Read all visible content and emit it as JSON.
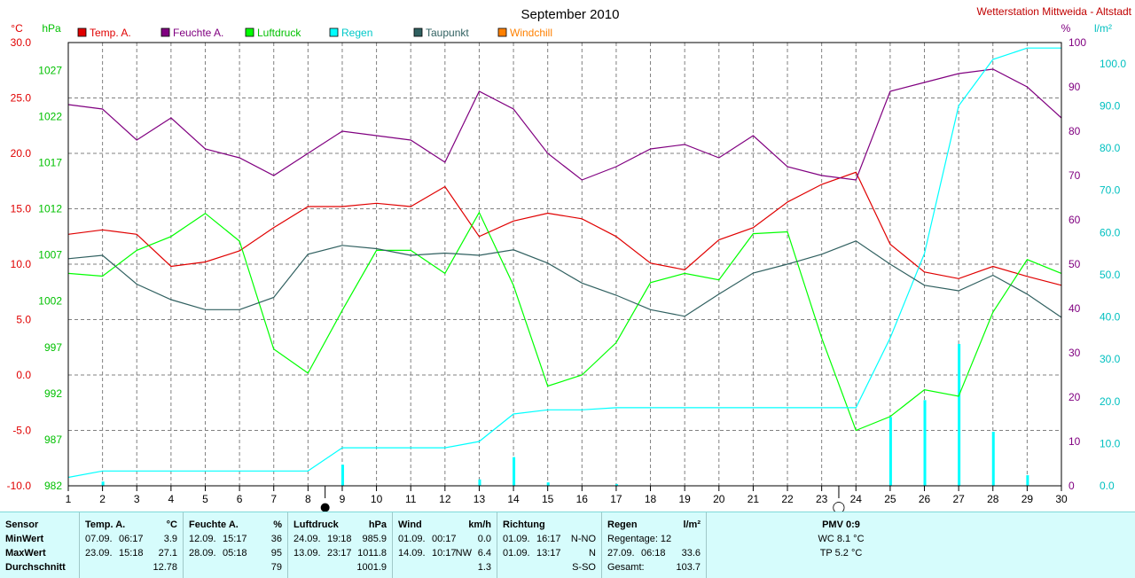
{
  "chart_data": {
    "type": "line",
    "title": "September 2010",
    "station": "Wetterstation Mittweida - Altstadt",
    "x": [
      1,
      2,
      3,
      4,
      5,
      6,
      7,
      8,
      9,
      10,
      11,
      12,
      13,
      14,
      15,
      16,
      17,
      18,
      19,
      20,
      21,
      22,
      23,
      24,
      25,
      26,
      27,
      28,
      29,
      30
    ],
    "x_ticks": [
      "1",
      "2",
      "3",
      "4",
      "5",
      "6",
      "7",
      "8",
      "9",
      "10",
      "11",
      "12",
      "13",
      "14",
      "15",
      "16",
      "17",
      "18",
      "19",
      "20",
      "21",
      "22",
      "23",
      "24",
      "25",
      "26",
      "27",
      "28",
      "29",
      "30"
    ],
    "left_axis_temp": {
      "unit": "°C",
      "range": [
        -10,
        30
      ],
      "ticks": [
        "30.0",
        "25.0",
        "20.0",
        "15.0",
        "10.0",
        "5.0",
        "0.0",
        "-5.0",
        "-10.0"
      ],
      "color": "#e00000"
    },
    "left_axis_pressure": {
      "unit": "hPa",
      "range": [
        982,
        1030
      ],
      "ticks": [
        "1027",
        "1022",
        "1017",
        "1012",
        "1007",
        "1002",
        "997",
        "992",
        "987",
        "982"
      ],
      "color": "#00c000"
    },
    "right_axis_humidity": {
      "unit": "%",
      "range": [
        0,
        100
      ],
      "ticks": [
        "100",
        "90",
        "80",
        "70",
        "60",
        "50",
        "40",
        "30",
        "20",
        "10",
        "0"
      ],
      "color": "#800080"
    },
    "right_axis_rain": {
      "unit": "l/m²",
      "range": [
        0,
        105
      ],
      "ticks": [
        "100.0",
        "90.0",
        "80.0",
        "70.0",
        "60.0",
        "50.0",
        "40.0",
        "30.0",
        "20.0",
        "10.0",
        "0.0"
      ],
      "color": "#00c0c0"
    },
    "legend": [
      {
        "name": "Temp. A.",
        "color": "#e00000"
      },
      {
        "name": "Feuchte A.",
        "color": "#800080"
      },
      {
        "name": "Luftdruck",
        "color": "#00ff00"
      },
      {
        "name": "Regen",
        "color": "#00ffff"
      },
      {
        "name": "Taupunkt",
        "color": "#306060"
      },
      {
        "name": "Windchill",
        "color": "#ff8000"
      }
    ],
    "series": [
      {
        "name": "Temp. A.",
        "axis": "temp",
        "color": "#e00000",
        "values": [
          12.7,
          13.1,
          12.7,
          9.8,
          10.2,
          11.2,
          13.3,
          15.2,
          15.2,
          15.5,
          15.2,
          17.0,
          12.5,
          13.9,
          14.6,
          14.1,
          12.5,
          10.1,
          9.5,
          12.2,
          13.3,
          15.6,
          17.2,
          18.3,
          11.8,
          9.3,
          8.7,
          9.8,
          8.9,
          8.1
        ]
      },
      {
        "name": "Feuchte A.",
        "axis": "humidity",
        "color": "#800080",
        "values": [
          86,
          85,
          78,
          83,
          76,
          74,
          70,
          75,
          80,
          79,
          78,
          73,
          89,
          85,
          75,
          69,
          72,
          76,
          77,
          74,
          79,
          72,
          70,
          69,
          89,
          91,
          93,
          94,
          90,
          83
        ]
      },
      {
        "name": "Luftdruck",
        "axis": "pressure",
        "color": "#00ff00",
        "values": [
          1005.0,
          1004.7,
          1007.5,
          1009.0,
          1011.5,
          1008.5,
          996.8,
          994.2,
          1001.0,
          1007.5,
          1007.5,
          1005.0,
          1011.6,
          1003.7,
          992.8,
          994.0,
          997.5,
          1004.0,
          1005.0,
          1004.3,
          1009.3,
          1009.5,
          998.0,
          988.0,
          989.5,
          992.4,
          991.7,
          1000.8,
          1006.5,
          1005.0
        ]
      },
      {
        "name": "Regen",
        "axis": "rain",
        "color": "#00ffff",
        "values": [
          2.0,
          3.5,
          3.5,
          3.5,
          3.5,
          3.5,
          3.5,
          3.5,
          9.0,
          9.0,
          9.0,
          9.0,
          10.5,
          17.0,
          18.0,
          18.0,
          18.5,
          18.5,
          18.5,
          18.5,
          18.5,
          18.5,
          18.5,
          18.5,
          35.0,
          55.0,
          90.0,
          101.0,
          103.7,
          103.7
        ]
      },
      {
        "name": "Taupunkt",
        "axis": "temp",
        "color": "#306060",
        "values": [
          10.5,
          10.8,
          8.2,
          6.8,
          5.9,
          5.9,
          7.0,
          10.9,
          11.7,
          11.4,
          10.8,
          11.0,
          10.8,
          11.3,
          10.1,
          8.3,
          7.2,
          5.9,
          5.3,
          7.3,
          9.2,
          10.0,
          10.9,
          12.1,
          10.0,
          8.1,
          7.6,
          9.0,
          7.3,
          5.2
        ]
      }
    ],
    "rain_bars": [
      {
        "day": 2,
        "value": 1.0
      },
      {
        "day": 9,
        "value": 5.0
      },
      {
        "day": 13,
        "value": 1.5
      },
      {
        "day": 14,
        "value": 6.8
      },
      {
        "day": 15,
        "value": 0.8
      },
      {
        "day": 17,
        "value": 0.4
      },
      {
        "day": 25,
        "value": 16.3
      },
      {
        "day": 26,
        "value": 20.3
      },
      {
        "day": 27,
        "value": 33.6
      },
      {
        "day": 28,
        "value": 12.8
      },
      {
        "day": 29,
        "value": 2.5
      }
    ],
    "moon_markers": [
      {
        "day": 8.5,
        "symbol": "●"
      },
      {
        "day": 23.5,
        "symbol": "◯"
      }
    ]
  },
  "stats": {
    "sensor": {
      "header": "Sensor",
      "min": "MinWert",
      "max": "MaxWert",
      "avg": "Durchschnitt"
    },
    "temp": {
      "header": "Temp. A.",
      "unit": "°C",
      "min_date": "07.09.",
      "min_time": "06:17",
      "min_val": "3.9",
      "max_date": "23.09.",
      "max_time": "15:18",
      "max_val": "27.1",
      "avg": "12.78"
    },
    "hum": {
      "header": "Feuchte A.",
      "unit": "%",
      "min_date": "12.09.",
      "min_time": "15:17",
      "min_val": "36",
      "max_date": "28.09.",
      "max_time": "05:18",
      "max_val": "95",
      "avg": "79"
    },
    "press": {
      "header": "Luftdruck",
      "unit": "hPa",
      "min_date": "24.09.",
      "min_time": "19:18",
      "min_val": "985.9",
      "max_date": "13.09.",
      "max_time": "23:17",
      "max_val": "1011.8",
      "avg": "1001.9"
    },
    "wind": {
      "header": "Wind",
      "unit": "km/h",
      "min_date": "01.09.",
      "min_time": "00:17",
      "min_val": "0.0",
      "max_date": "14.09.",
      "max_time": "10:17",
      "max_dir": "NW",
      "max_val": "6.4",
      "avg": "1.3"
    },
    "dir": {
      "header": "Richtung",
      "min_date": "01.09.",
      "min_time": "16:17",
      "min_val": "N-NO",
      "max_date": "01.09.",
      "max_time": "13:17",
      "max_val": "N",
      "avg": "S-SO"
    },
    "rain": {
      "header": "Regen",
      "unit": "l/m²",
      "days": "Regentage: 12",
      "max_date": "27.09.",
      "max_time": "06:18",
      "max_val": "33.6",
      "total_label": "Gesamt:",
      "total": "103.7"
    },
    "pmv": {
      "header": "PMV 0:9",
      "wc": "WC 8.1 °C",
      "tp": "TP 5.2 °C"
    }
  }
}
